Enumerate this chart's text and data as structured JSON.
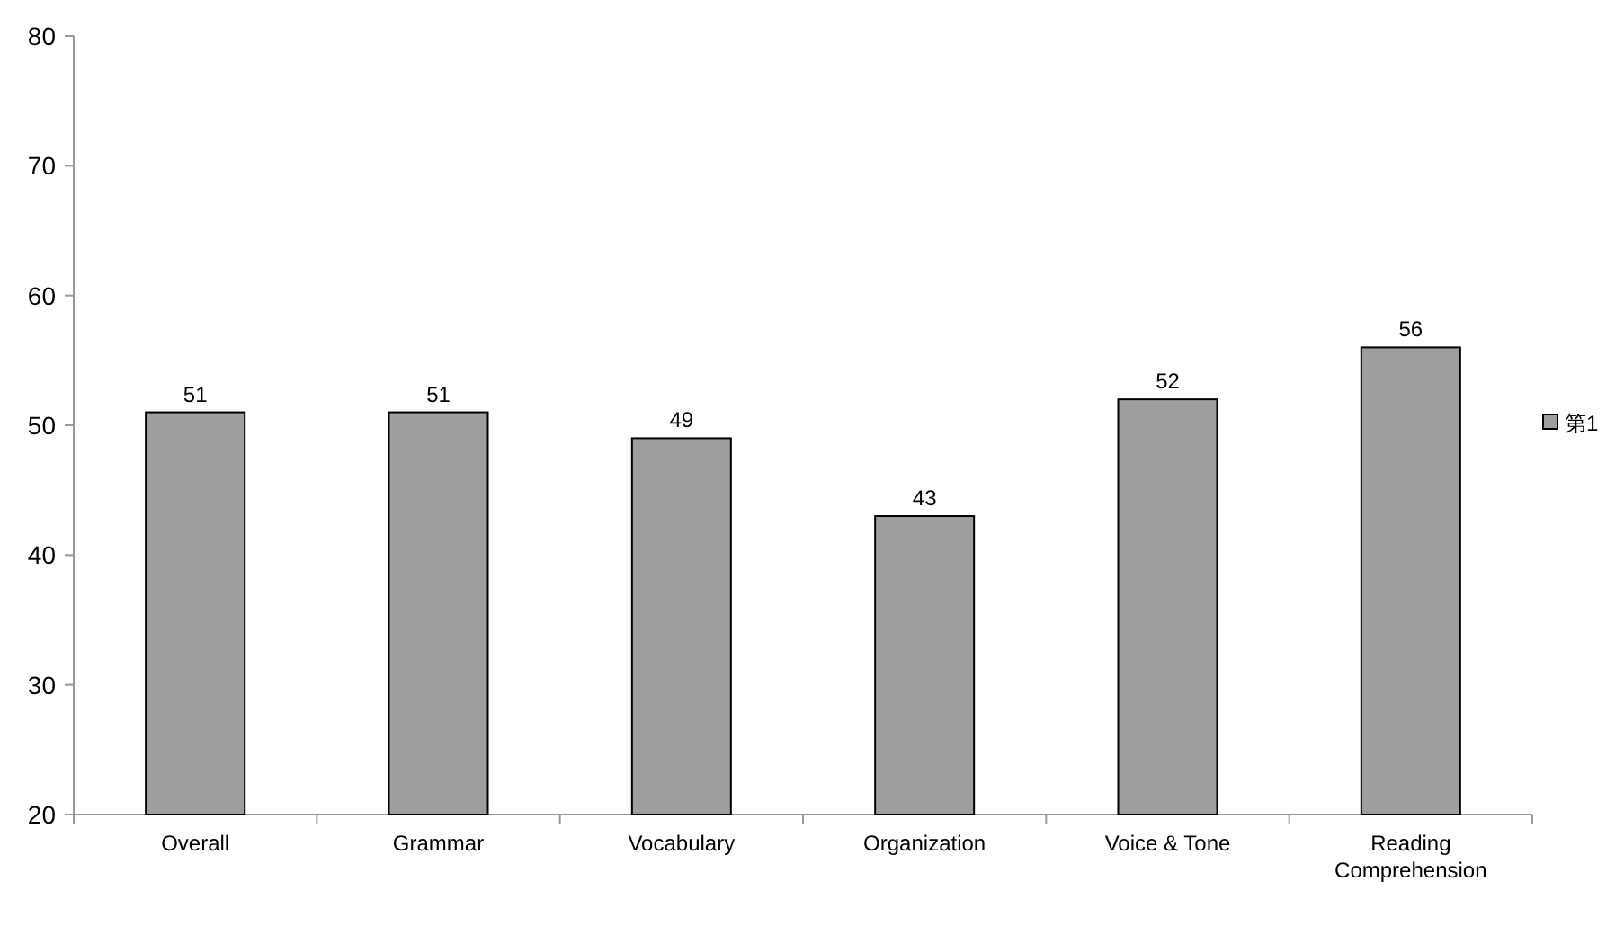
{
  "chart_data": {
    "type": "bar",
    "categories": [
      "Overall",
      "Grammar",
      "Vocabulary",
      "Organization",
      "Voice & Tone",
      "Reading Comprehension"
    ],
    "series": [
      {
        "name": "第1",
        "color": "#9e9e9e",
        "values": [
          51,
          51,
          49,
          43,
          52,
          56
        ]
      }
    ],
    "ylim": [
      20,
      80
    ],
    "yticks": [
      20,
      30,
      40,
      50,
      60,
      70,
      80
    ],
    "data_labels": true,
    "grid": false,
    "legend": "right"
  }
}
